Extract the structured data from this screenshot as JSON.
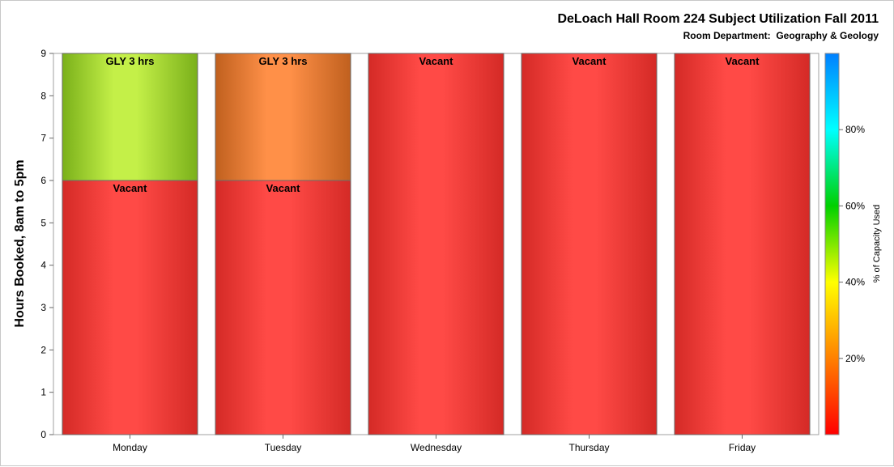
{
  "chart_data": {
    "type": "bar",
    "stacked": true,
    "title": "DeLoach Hall Room 224 Subject Utilization Fall 2011",
    "subtitle": "Room Department:  Geography & Geology",
    "ylabel": "Hours Booked, 8am to 5pm",
    "xlabel": "",
    "ylim": [
      0,
      9
    ],
    "yticks": [
      0,
      1,
      2,
      3,
      4,
      5,
      6,
      7,
      8,
      9
    ],
    "categories": [
      "Monday",
      "Tuesday",
      "Wednesday",
      "Thursday",
      "Friday"
    ],
    "bars": [
      {
        "category": "Monday",
        "segments": [
          {
            "label": "Vacant",
            "hours": 6,
            "color": "#d42a26",
            "highlight": "#ff4a46"
          },
          {
            "label": "GLY 3 hrs",
            "hours": 3,
            "color": "#7ab01a",
            "highlight": "#c4f048"
          }
        ]
      },
      {
        "category": "Tuesday",
        "segments": [
          {
            "label": "Vacant",
            "hours": 6,
            "color": "#d42a26",
            "highlight": "#ff4a46"
          },
          {
            "label": "GLY 3 hrs",
            "hours": 3,
            "color": "#c0601e",
            "highlight": "#ff9048"
          }
        ]
      },
      {
        "category": "Wednesday",
        "segments": [
          {
            "label": "Vacant",
            "hours": 9,
            "color": "#d42a26",
            "highlight": "#ff4a46"
          }
        ]
      },
      {
        "category": "Thursday",
        "segments": [
          {
            "label": "Vacant",
            "hours": 9,
            "color": "#d42a26",
            "highlight": "#ff4a46"
          }
        ]
      },
      {
        "category": "Friday",
        "segments": [
          {
            "label": "Vacant",
            "hours": 9,
            "color": "#d42a26",
            "highlight": "#ff4a46"
          }
        ]
      }
    ],
    "grid": false,
    "legend": {
      "type": "colorbar",
      "placement": "right",
      "label": "% of Capacity Used",
      "ticks": [
        "20%",
        "40%",
        "60%",
        "80%"
      ],
      "tick_values": [
        20,
        40,
        60,
        80
      ],
      "range": [
        0,
        100
      ],
      "colors": [
        "#ff0000",
        "#ff8000",
        "#ffff00",
        "#00d000",
        "#00ffff",
        "#0080ff"
      ]
    }
  }
}
